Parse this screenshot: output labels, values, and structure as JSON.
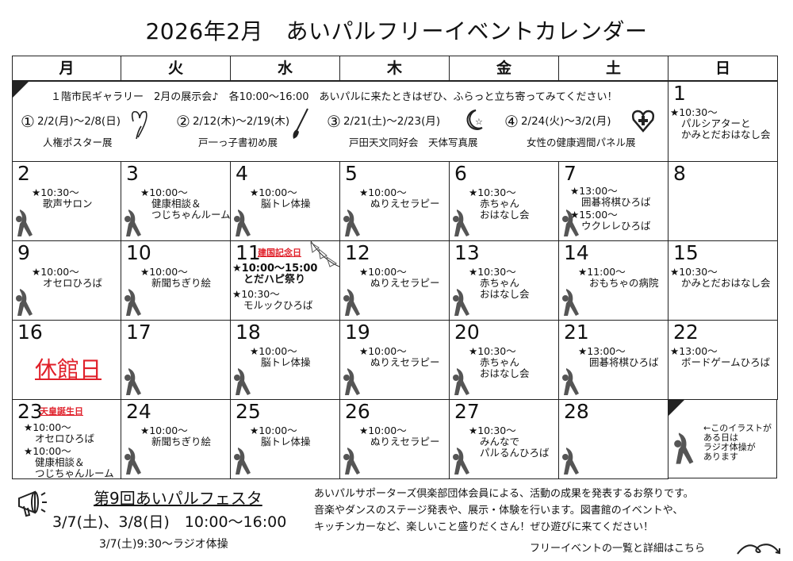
{
  "title": "2026年2月　あいパルフリーイベントカレンダー",
  "weekdays": [
    "月",
    "火",
    "水",
    "木",
    "金",
    "土",
    "日"
  ],
  "exhibit": {
    "headline": "１階市民ギャラリー　2月の展示会♪　各10:00～16:00　あいパルに来たときはぜひ、ふらっと立ち寄ってみてください！",
    "items": [
      {
        "no": "①",
        "dates": "2/2(月)～2/8(日)",
        "name": "人権ポスター展",
        "icon": "heart-icon"
      },
      {
        "no": "②",
        "dates": "2/12(木)～2/19(木)",
        "name": "戸一っ子書初め展",
        "icon": "brush-icon"
      },
      {
        "no": "③",
        "dates": "2/21(土)～2/23(月)",
        "name": "戸田天文同好会　天体写真展",
        "icon": "moon-star-icon"
      },
      {
        "no": "④",
        "dates": "2/24(火)～3/2(月)",
        "name": "女性の健康週間パネル展",
        "icon": "heart-cross-icon"
      }
    ]
  },
  "days": [
    {
      "n": "1",
      "col": 6,
      "row": 0,
      "ev": [
        {
          "t": "★10:30～",
          "l": [
            "パルシアターと",
            "かみとだおはなし会"
          ]
        }
      ]
    },
    {
      "n": "2",
      "col": 0,
      "row": 1,
      "radio": true,
      "ev": [
        {
          "t": "★10:30～",
          "l": [
            "歌声サロン"
          ]
        }
      ]
    },
    {
      "n": "3",
      "col": 1,
      "row": 1,
      "radio": true,
      "ev": [
        {
          "t": "★10:00～",
          "l": [
            "健康相談＆",
            "つじちゃんルーム"
          ]
        }
      ]
    },
    {
      "n": "4",
      "col": 2,
      "row": 1,
      "radio": true,
      "ev": [
        {
          "t": "★10:00～",
          "l": [
            "脳トレ体操"
          ]
        }
      ]
    },
    {
      "n": "5",
      "col": 3,
      "row": 1,
      "radio": true,
      "ev": [
        {
          "t": "★10:00～",
          "l": [
            "ぬりえセラピー"
          ]
        }
      ]
    },
    {
      "n": "6",
      "col": 4,
      "row": 1,
      "radio": true,
      "ev": [
        {
          "t": "★10:30～",
          "l": [
            "赤ちゃん",
            "おはなし会"
          ]
        }
      ]
    },
    {
      "n": "7",
      "col": 5,
      "row": 1,
      "radio": true,
      "ev": [
        {
          "t": "★13:00～",
          "l": [
            "囲碁将棋ひろば"
          ]
        },
        {
          "t": "★15:00～",
          "l": [
            "ウクレレひろば"
          ]
        }
      ]
    },
    {
      "n": "8",
      "col": 6,
      "row": 1,
      "ev": []
    },
    {
      "n": "9",
      "col": 0,
      "row": 2,
      "radio": true,
      "ev": [
        {
          "t": "★10:00～",
          "l": [
            "オセロひろば"
          ]
        }
      ]
    },
    {
      "n": "10",
      "col": 1,
      "row": 2,
      "radio": true,
      "ev": [
        {
          "t": "★10:00～",
          "l": [
            "新聞ちぎり絵"
          ]
        }
      ]
    },
    {
      "n": "11",
      "col": 2,
      "row": 2,
      "holiday": "建国記念日",
      "ev": [
        {
          "t": "★10:00～15:00",
          "l": [
            "とだハピ祭り"
          ],
          "bold": true
        },
        {
          "t": "★10:30～",
          "l": [
            "モルックひろば"
          ]
        }
      ]
    },
    {
      "n": "12",
      "col": 3,
      "row": 2,
      "radio": true,
      "ev": [
        {
          "t": "★10:00～",
          "l": [
            "ぬりえセラピー"
          ]
        }
      ]
    },
    {
      "n": "13",
      "col": 4,
      "row": 2,
      "radio": true,
      "ev": [
        {
          "t": "★10:30～",
          "l": [
            "赤ちゃん",
            "おはなし会"
          ]
        }
      ]
    },
    {
      "n": "14",
      "col": 5,
      "row": 2,
      "radio": true,
      "ev": [
        {
          "t": "★11:00～",
          "l": [
            "おもちゃの病院"
          ]
        }
      ]
    },
    {
      "n": "15",
      "col": 6,
      "row": 2,
      "ev": [
        {
          "t": "★10:30～",
          "l": [
            "かみとだおはなし会"
          ]
        }
      ]
    },
    {
      "n": "16",
      "col": 0,
      "row": 3,
      "closed": "休館日",
      "ev": []
    },
    {
      "n": "17",
      "col": 1,
      "row": 3,
      "radio": true,
      "ev": []
    },
    {
      "n": "18",
      "col": 2,
      "row": 3,
      "radio": true,
      "ev": [
        {
          "t": "★10:00～",
          "l": [
            "脳トレ体操"
          ]
        }
      ]
    },
    {
      "n": "19",
      "col": 3,
      "row": 3,
      "radio": true,
      "ev": [
        {
          "t": "★10:00～",
          "l": [
            "ぬりえセラピー"
          ]
        }
      ]
    },
    {
      "n": "20",
      "col": 4,
      "row": 3,
      "radio": true,
      "ev": [
        {
          "t": "★10:30～",
          "l": [
            "赤ちゃん",
            "おはなし会"
          ]
        }
      ]
    },
    {
      "n": "21",
      "col": 5,
      "row": 3,
      "radio": true,
      "ev": [
        {
          "t": "★13:00～",
          "l": [
            "囲碁将棋ひろば"
          ]
        }
      ]
    },
    {
      "n": "22",
      "col": 6,
      "row": 3,
      "ev": [
        {
          "t": "★13:00～",
          "l": [
            "ボードゲームひろば"
          ]
        }
      ]
    },
    {
      "n": "23",
      "col": 0,
      "row": 4,
      "holiday": "天皇誕生日",
      "ev": [
        {
          "t": "★10:00～",
          "l": [
            "オセロひろば"
          ]
        },
        {
          "t": "★10:00～",
          "l": [
            "健康相談＆",
            "つじちゃんルーム"
          ]
        }
      ]
    },
    {
      "n": "24",
      "col": 1,
      "row": 4,
      "radio": true,
      "ev": [
        {
          "t": "★10:00～",
          "l": [
            "新聞ちぎり絵"
          ]
        }
      ]
    },
    {
      "n": "25",
      "col": 2,
      "row": 4,
      "radio": true,
      "ev": [
        {
          "t": "★10:00～",
          "l": [
            "脳トレ体操"
          ]
        }
      ]
    },
    {
      "n": "26",
      "col": 3,
      "row": 4,
      "radio": true,
      "ev": [
        {
          "t": "★10:00～",
          "l": [
            "ぬりえセラピー"
          ]
        }
      ]
    },
    {
      "n": "27",
      "col": 4,
      "row": 4,
      "radio": true,
      "ev": [
        {
          "t": "★10:30～",
          "l": [
            "みんなで",
            "パルるんひろば"
          ]
        }
      ]
    },
    {
      "n": "28",
      "col": 5,
      "row": 4,
      "radio": true,
      "ev": []
    }
  ],
  "legend": {
    "text": [
      "←このイラストが",
      "ある日は",
      "ラジオ体操が",
      "あります"
    ],
    "icon": "radio-exercise-icon"
  },
  "festa": {
    "title": "第9回あいパルフェスタ",
    "dates": "3/7(土)、3/8(日)　10:00～16:00",
    "radio": "3/7(土)9:30～ラジオ体操",
    "description": [
      "あいパルサポーターズ倶楽部団体会員による、活動の成果を発表するお祭りです。",
      "音楽やダンスのステージ発表や、展示・体験を行います。図書館のイベントや、",
      "キッチンカーなど、楽しいこと盛りだくさん！ぜひ遊びに来てください！"
    ]
  },
  "more_link": "フリーイベントの一覧と詳細はこちら",
  "colors": {
    "holiday": "#e0202a",
    "border": "#222222",
    "figure": "#555555"
  }
}
